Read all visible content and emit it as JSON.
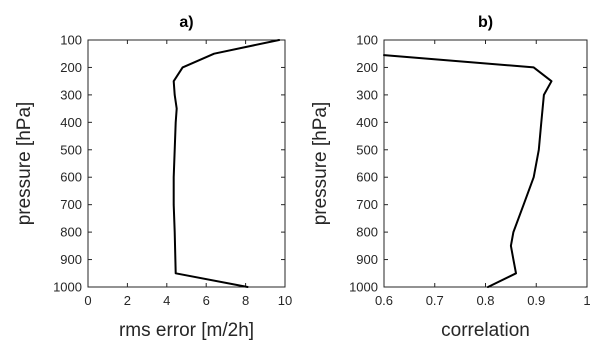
{
  "chart_data": [
    {
      "type": "line",
      "title": "a)",
      "xlabel": "rms error [m/2h]",
      "ylabel": "pressure [hPa]",
      "xlim": [
        0,
        10
      ],
      "ylim": [
        100,
        1000
      ],
      "y_reversed": true,
      "xticks": [
        "0",
        "2",
        "4",
        "6",
        "8",
        "10"
      ],
      "yticks": [
        "100",
        "200",
        "300",
        "400",
        "500",
        "600",
        "700",
        "800",
        "900",
        "1000"
      ],
      "grid": false,
      "series": [
        {
          "x": [
            9.7,
            6.4,
            4.8,
            4.35,
            4.4,
            4.5,
            4.45,
            4.4,
            4.35,
            4.35,
            4.4,
            4.45,
            8.1
          ],
          "y": [
            100,
            150,
            200,
            250,
            300,
            350,
            400,
            500,
            600,
            700,
            800,
            950,
            1000
          ],
          "color": "#000000"
        }
      ]
    },
    {
      "type": "line",
      "title": "b)",
      "xlabel": "correlation",
      "ylabel": "pressure [hPa]",
      "xlim": [
        0.6,
        1.0
      ],
      "ylim": [
        100,
        1000
      ],
      "y_reversed": true,
      "xticks": [
        "0.6",
        "0.7",
        "0.8",
        "0.9",
        "1"
      ],
      "yticks": [
        "100",
        "200",
        "300",
        "400",
        "500",
        "600",
        "700",
        "800",
        "900",
        "1000"
      ],
      "grid": false,
      "series": [
        {
          "x": [
            0.6,
            0.895,
            0.93,
            0.915,
            0.91,
            0.905,
            0.895,
            0.875,
            0.855,
            0.85,
            0.855,
            0.86,
            0.805
          ],
          "y": [
            155,
            200,
            250,
            300,
            400,
            500,
            600,
            700,
            800,
            850,
            900,
            950,
            1000
          ],
          "color": "#000000"
        }
      ]
    }
  ]
}
